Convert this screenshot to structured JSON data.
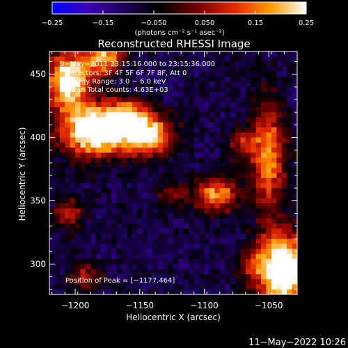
{
  "chart_data": {
    "type": "heatmap",
    "title": "Reconstructed RHESSI Image",
    "xlabel": "Heliocentric X (arcsec)",
    "ylabel": "Heliocentric Y (arcsec)",
    "xlim": [
      -1220,
      -1028
    ],
    "ylim": [
      276,
      468
    ],
    "x_ticks": [
      -1200,
      -1150,
      -1100,
      -1050
    ],
    "y_ticks": [
      300,
      350,
      400,
      450
    ],
    "x_tick_labels": [
      "−1200",
      "−1150",
      "−1100",
      "−1050"
    ],
    "y_tick_labels": [
      "300",
      "350",
      "400",
      "450"
    ],
    "colorbar": {
      "min": -0.25,
      "max": 0.25,
      "ticks": [
        -0.25,
        -0.15,
        -0.05,
        0.05,
        0.15,
        0.25
      ],
      "tick_labels": [
        "−0.25",
        "−0.15",
        "−0.050",
        "0.050",
        "0.15",
        "0.25"
      ],
      "unit_label": "(photons cm⁻² s⁻¹ asec⁻²)",
      "colors": [
        "#0000ff",
        "#3d00b5",
        "#000000",
        "#7a0000",
        "#e62a00",
        "#ff9a00",
        "#ffffff"
      ]
    },
    "annotations": [
      "9−May−2011 23:15:16.000 to 23:15:36.000",
      "Detectors: 3F 4F 5F 6F 7F 8F, Att 0",
      "Energy Range: 3.0 − 6.0 keV",
      "Clean     Total counts: 4.63E+03"
    ],
    "peak_label": "Position of Peak = [−1177,464]",
    "peak": [
      -1177,
      464
    ],
    "sources": [
      {
        "x": -1185,
        "y": 405,
        "amp": 0.42,
        "sx": 18,
        "sy": 14
      },
      {
        "x": -1145,
        "y": 402,
        "amp": 0.34,
        "sx": 14,
        "sy": 11
      },
      {
        "x": -1160,
        "y": 418,
        "amp": 0.22,
        "sx": 12,
        "sy": 9
      },
      {
        "x": -1205,
        "y": 445,
        "amp": 0.38,
        "sx": 12,
        "sy": 16
      },
      {
        "x": -1177,
        "y": 462,
        "amp": 0.3,
        "sx": 10,
        "sy": 8
      },
      {
        "x": -1090,
        "y": 355,
        "amp": 0.27,
        "sx": 12,
        "sy": 10
      },
      {
        "x": -1050,
        "y": 385,
        "amp": 0.27,
        "sx": 9,
        "sy": 30
      },
      {
        "x": -1040,
        "y": 295,
        "amp": 0.45,
        "sx": 14,
        "sy": 20
      },
      {
        "x": -1070,
        "y": 395,
        "amp": 0.15,
        "sx": 8,
        "sy": 10
      },
      {
        "x": -1192,
        "y": 290,
        "amp": 0.15,
        "sx": 9,
        "sy": 8
      },
      {
        "x": -1125,
        "y": 355,
        "amp": 0.13,
        "sx": 8,
        "sy": 8
      },
      {
        "x": -1205,
        "y": 340,
        "amp": 0.18,
        "sx": 8,
        "sy": 8
      },
      {
        "x": -1065,
        "y": 300,
        "amp": 0.11,
        "sx": 7,
        "sy": 7
      }
    ]
  },
  "footer": {
    "timestamp": "11−May−2022 10:26"
  }
}
